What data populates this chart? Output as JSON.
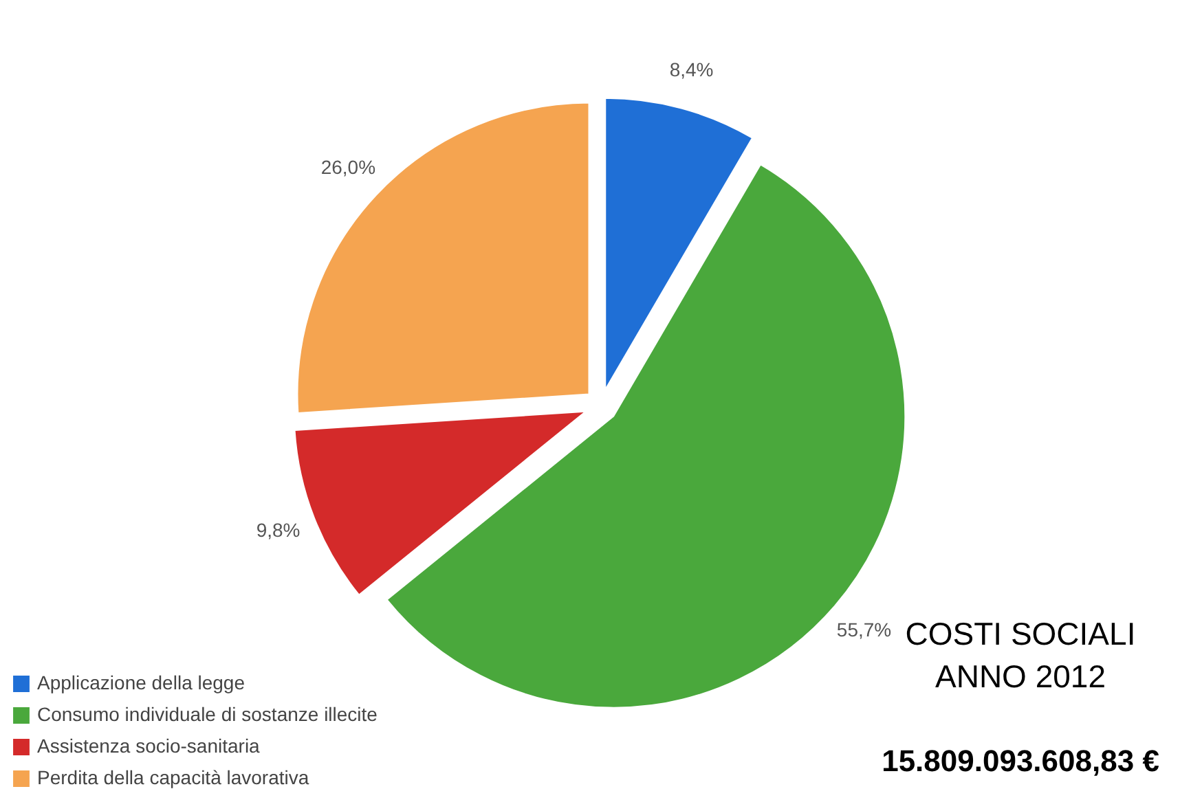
{
  "chart_data": {
    "type": "pie",
    "categories": [
      "Applicazione della legge",
      "Consumo individuale di sostanze illecite",
      "Assistenza socio-sanitaria",
      "Perdita della capacità lavorativa"
    ],
    "values": [
      8.4,
      55.7,
      9.8,
      26.0
    ],
    "colors": [
      "#1f6fd6",
      "#4aa83c",
      "#d42a2a",
      "#f5a450"
    ],
    "value_labels": [
      "8,4%",
      "55,7%",
      "9,8%",
      "26,0%"
    ],
    "legend": "bottom left",
    "annotations": [
      "COSTI SOCIALI",
      "ANNO 2012",
      "15.809.093.608,83 €"
    ]
  }
}
